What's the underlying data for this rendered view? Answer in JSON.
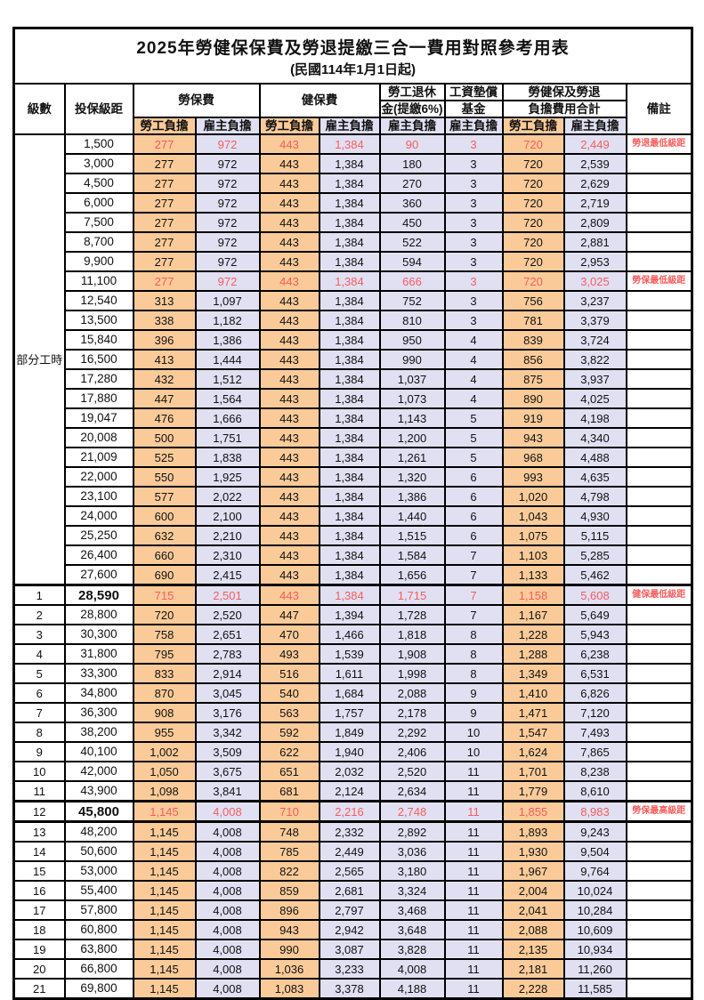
{
  "title": "2025年勞健保保費及勞退提繳三合一費用對照參考用表",
  "subtitle": "(民國114年1月1日起)",
  "header": {
    "level": "級數",
    "bracket": "投保級距",
    "labor_fee": "勞保費",
    "health_fee": "健保費",
    "pension_line1": "勞工退休",
    "pension_line2": "金(提繳6%)",
    "wage_fund_line1": "工資墊償",
    "wage_fund_line2": "基金",
    "total_line1": "勞健保及勞退",
    "total_line2": "負擔費用合計",
    "remark": "備註",
    "worker_share": "勞工負擔",
    "employer_share": "雇主負擔"
  },
  "part_time_label": "部分工時",
  "part_time_rows": 23,
  "colors": {
    "worker_bg": "#facb99",
    "employer_bg": "#e1e0f3",
    "highlight_red": "#f75d5d",
    "border": "#000000"
  },
  "rows": [
    {
      "level": "",
      "bracket": "1,500",
      "values": [
        "277",
        "972",
        "443",
        "1,384",
        "90",
        "3",
        "720",
        "2,449"
      ],
      "red": true,
      "remark": "勞退最低級距",
      "big": false,
      "thick_top": false,
      "thick_bottom": false
    },
    {
      "level": "",
      "bracket": "3,000",
      "values": [
        "277",
        "972",
        "443",
        "1,384",
        "180",
        "3",
        "720",
        "2,539"
      ],
      "red": false,
      "remark": "",
      "big": false,
      "thick_top": false,
      "thick_bottom": false
    },
    {
      "level": "",
      "bracket": "4,500",
      "values": [
        "277",
        "972",
        "443",
        "1,384",
        "270",
        "3",
        "720",
        "2,629"
      ],
      "red": false,
      "remark": "",
      "big": false,
      "thick_top": false,
      "thick_bottom": false
    },
    {
      "level": "",
      "bracket": "6,000",
      "values": [
        "277",
        "972",
        "443",
        "1,384",
        "360",
        "3",
        "720",
        "2,719"
      ],
      "red": false,
      "remark": "",
      "big": false,
      "thick_top": false,
      "thick_bottom": false
    },
    {
      "level": "",
      "bracket": "7,500",
      "values": [
        "277",
        "972",
        "443",
        "1,384",
        "450",
        "3",
        "720",
        "2,809"
      ],
      "red": false,
      "remark": "",
      "big": false,
      "thick_top": false,
      "thick_bottom": false
    },
    {
      "level": "",
      "bracket": "8,700",
      "values": [
        "277",
        "972",
        "443",
        "1,384",
        "522",
        "3",
        "720",
        "2,881"
      ],
      "red": false,
      "remark": "",
      "big": false,
      "thick_top": false,
      "thick_bottom": false
    },
    {
      "level": "",
      "bracket": "9,900",
      "values": [
        "277",
        "972",
        "443",
        "1,384",
        "594",
        "3",
        "720",
        "2,953"
      ],
      "red": false,
      "remark": "",
      "big": false,
      "thick_top": false,
      "thick_bottom": false
    },
    {
      "level": "",
      "bracket": "11,100",
      "values": [
        "277",
        "972",
        "443",
        "1,384",
        "666",
        "3",
        "720",
        "3,025"
      ],
      "red": true,
      "remark": "勞保最低級距",
      "big": false,
      "thick_top": false,
      "thick_bottom": false
    },
    {
      "level": "",
      "bracket": "12,540",
      "values": [
        "313",
        "1,097",
        "443",
        "1,384",
        "752",
        "3",
        "756",
        "3,237"
      ],
      "red": false,
      "remark": "",
      "big": false,
      "thick_top": false,
      "thick_bottom": false
    },
    {
      "level": "",
      "bracket": "13,500",
      "values": [
        "338",
        "1,182",
        "443",
        "1,384",
        "810",
        "3",
        "781",
        "3,379"
      ],
      "red": false,
      "remark": "",
      "big": false,
      "thick_top": false,
      "thick_bottom": false
    },
    {
      "level": "",
      "bracket": "15,840",
      "values": [
        "396",
        "1,386",
        "443",
        "1,384",
        "950",
        "4",
        "839",
        "3,724"
      ],
      "red": false,
      "remark": "",
      "big": false,
      "thick_top": false,
      "thick_bottom": false
    },
    {
      "level": "",
      "bracket": "16,500",
      "values": [
        "413",
        "1,444",
        "443",
        "1,384",
        "990",
        "4",
        "856",
        "3,822"
      ],
      "red": false,
      "remark": "",
      "big": false,
      "thick_top": false,
      "thick_bottom": false
    },
    {
      "level": "",
      "bracket": "17,280",
      "values": [
        "432",
        "1,512",
        "443",
        "1,384",
        "1,037",
        "4",
        "875",
        "3,937"
      ],
      "red": false,
      "remark": "",
      "big": false,
      "thick_top": false,
      "thick_bottom": false
    },
    {
      "level": "",
      "bracket": "17,880",
      "values": [
        "447",
        "1,564",
        "443",
        "1,384",
        "1,073",
        "4",
        "890",
        "4,025"
      ],
      "red": false,
      "remark": "",
      "big": false,
      "thick_top": false,
      "thick_bottom": false
    },
    {
      "level": "",
      "bracket": "19,047",
      "values": [
        "476",
        "1,666",
        "443",
        "1,384",
        "1,143",
        "5",
        "919",
        "4,198"
      ],
      "red": false,
      "remark": "",
      "big": false,
      "thick_top": false,
      "thick_bottom": false
    },
    {
      "level": "",
      "bracket": "20,008",
      "values": [
        "500",
        "1,751",
        "443",
        "1,384",
        "1,200",
        "5",
        "943",
        "4,340"
      ],
      "red": false,
      "remark": "",
      "big": false,
      "thick_top": false,
      "thick_bottom": false
    },
    {
      "level": "",
      "bracket": "21,009",
      "values": [
        "525",
        "1,838",
        "443",
        "1,384",
        "1,261",
        "5",
        "968",
        "4,488"
      ],
      "red": false,
      "remark": "",
      "big": false,
      "thick_top": false,
      "thick_bottom": false
    },
    {
      "level": "",
      "bracket": "22,000",
      "values": [
        "550",
        "1,925",
        "443",
        "1,384",
        "1,320",
        "6",
        "993",
        "4,635"
      ],
      "red": false,
      "remark": "",
      "big": false,
      "thick_top": false,
      "thick_bottom": false
    },
    {
      "level": "",
      "bracket": "23,100",
      "values": [
        "577",
        "2,022",
        "443",
        "1,384",
        "1,386",
        "6",
        "1,020",
        "4,798"
      ],
      "red": false,
      "remark": "",
      "big": false,
      "thick_top": false,
      "thick_bottom": false
    },
    {
      "level": "",
      "bracket": "24,000",
      "values": [
        "600",
        "2,100",
        "443",
        "1,384",
        "1,440",
        "6",
        "1,043",
        "4,930"
      ],
      "red": false,
      "remark": "",
      "big": false,
      "thick_top": false,
      "thick_bottom": false
    },
    {
      "level": "",
      "bracket": "25,250",
      "values": [
        "632",
        "2,210",
        "443",
        "1,384",
        "1,515",
        "6",
        "1,075",
        "5,115"
      ],
      "red": false,
      "remark": "",
      "big": false,
      "thick_top": false,
      "thick_bottom": false
    },
    {
      "level": "",
      "bracket": "26,400",
      "values": [
        "660",
        "2,310",
        "443",
        "1,384",
        "1,584",
        "7",
        "1,103",
        "5,285"
      ],
      "red": false,
      "remark": "",
      "big": false,
      "thick_top": false,
      "thick_bottom": false
    },
    {
      "level": "",
      "bracket": "27,600",
      "values": [
        "690",
        "2,415",
        "443",
        "1,384",
        "1,656",
        "7",
        "1,133",
        "5,462"
      ],
      "red": false,
      "remark": "",
      "big": false,
      "thick_top": false,
      "thick_bottom": false
    },
    {
      "level": "1",
      "bracket": "28,590",
      "values": [
        "715",
        "2,501",
        "443",
        "1,384",
        "1,715",
        "7",
        "1,158",
        "5,608"
      ],
      "red": true,
      "remark": "健保最低級距",
      "big": true,
      "thick_top": true,
      "thick_bottom": false
    },
    {
      "level": "2",
      "bracket": "28,800",
      "values": [
        "720",
        "2,520",
        "447",
        "1,394",
        "1,728",
        "7",
        "1,167",
        "5,649"
      ],
      "red": false,
      "remark": "",
      "big": false,
      "thick_top": false,
      "thick_bottom": false
    },
    {
      "level": "3",
      "bracket": "30,300",
      "values": [
        "758",
        "2,651",
        "470",
        "1,466",
        "1,818",
        "8",
        "1,228",
        "5,943"
      ],
      "red": false,
      "remark": "",
      "big": false,
      "thick_top": false,
      "thick_bottom": false
    },
    {
      "level": "4",
      "bracket": "31,800",
      "values": [
        "795",
        "2,783",
        "493",
        "1,539",
        "1,908",
        "8",
        "1,288",
        "6,238"
      ],
      "red": false,
      "remark": "",
      "big": false,
      "thick_top": false,
      "thick_bottom": false
    },
    {
      "level": "5",
      "bracket": "33,300",
      "values": [
        "833",
        "2,914",
        "516",
        "1,611",
        "1,998",
        "8",
        "1,349",
        "6,531"
      ],
      "red": false,
      "remark": "",
      "big": false,
      "thick_top": false,
      "thick_bottom": false
    },
    {
      "level": "6",
      "bracket": "34,800",
      "values": [
        "870",
        "3,045",
        "540",
        "1,684",
        "2,088",
        "9",
        "1,410",
        "6,826"
      ],
      "red": false,
      "remark": "",
      "big": false,
      "thick_top": false,
      "thick_bottom": false
    },
    {
      "level": "7",
      "bracket": "36,300",
      "values": [
        "908",
        "3,176",
        "563",
        "1,757",
        "2,178",
        "9",
        "1,471",
        "7,120"
      ],
      "red": false,
      "remark": "",
      "big": false,
      "thick_top": false,
      "thick_bottom": false
    },
    {
      "level": "8",
      "bracket": "38,200",
      "values": [
        "955",
        "3,342",
        "592",
        "1,849",
        "2,292",
        "10",
        "1,547",
        "7,493"
      ],
      "red": false,
      "remark": "",
      "big": false,
      "thick_top": false,
      "thick_bottom": false
    },
    {
      "level": "9",
      "bracket": "40,100",
      "values": [
        "1,002",
        "3,509",
        "622",
        "1,940",
        "2,406",
        "10",
        "1,624",
        "7,865"
      ],
      "red": false,
      "remark": "",
      "big": false,
      "thick_top": false,
      "thick_bottom": false
    },
    {
      "level": "10",
      "bracket": "42,000",
      "values": [
        "1,050",
        "3,675",
        "651",
        "2,032",
        "2,520",
        "11",
        "1,701",
        "8,238"
      ],
      "red": false,
      "remark": "",
      "big": false,
      "thick_top": false,
      "thick_bottom": false
    },
    {
      "level": "11",
      "bracket": "43,900",
      "values": [
        "1,098",
        "3,841",
        "681",
        "2,124",
        "2,634",
        "11",
        "1,779",
        "8,610"
      ],
      "red": false,
      "remark": "",
      "big": false,
      "thick_top": false,
      "thick_bottom": false
    },
    {
      "level": "12",
      "bracket": "45,800",
      "values": [
        "1,145",
        "4,008",
        "710",
        "2,216",
        "2,748",
        "11",
        "1,855",
        "8,983"
      ],
      "red": true,
      "remark": "勞保最高級距",
      "big": true,
      "thick_top": true,
      "thick_bottom": true
    },
    {
      "level": "13",
      "bracket": "48,200",
      "values": [
        "1,145",
        "4,008",
        "748",
        "2,332",
        "2,892",
        "11",
        "1,893",
        "9,243"
      ],
      "red": false,
      "remark": "",
      "big": false,
      "thick_top": false,
      "thick_bottom": false
    },
    {
      "level": "14",
      "bracket": "50,600",
      "values": [
        "1,145",
        "4,008",
        "785",
        "2,449",
        "3,036",
        "11",
        "1,930",
        "9,504"
      ],
      "red": false,
      "remark": "",
      "big": false,
      "thick_top": false,
      "thick_bottom": false
    },
    {
      "level": "15",
      "bracket": "53,000",
      "values": [
        "1,145",
        "4,008",
        "822",
        "2,565",
        "3,180",
        "11",
        "1,967",
        "9,764"
      ],
      "red": false,
      "remark": "",
      "big": false,
      "thick_top": false,
      "thick_bottom": false
    },
    {
      "level": "16",
      "bracket": "55,400",
      "values": [
        "1,145",
        "4,008",
        "859",
        "2,681",
        "3,324",
        "11",
        "2,004",
        "10,024"
      ],
      "red": false,
      "remark": "",
      "big": false,
      "thick_top": false,
      "thick_bottom": false
    },
    {
      "level": "17",
      "bracket": "57,800",
      "values": [
        "1,145",
        "4,008",
        "896",
        "2,797",
        "3,468",
        "11",
        "2,041",
        "10,284"
      ],
      "red": false,
      "remark": "",
      "big": false,
      "thick_top": false,
      "thick_bottom": false
    },
    {
      "level": "18",
      "bracket": "60,800",
      "values": [
        "1,145",
        "4,008",
        "943",
        "2,942",
        "3,648",
        "11",
        "2,088",
        "10,609"
      ],
      "red": false,
      "remark": "",
      "big": false,
      "thick_top": false,
      "thick_bottom": false
    },
    {
      "level": "19",
      "bracket": "63,800",
      "values": [
        "1,145",
        "4,008",
        "990",
        "3,087",
        "3,828",
        "11",
        "2,135",
        "10,934"
      ],
      "red": false,
      "remark": "",
      "big": false,
      "thick_top": false,
      "thick_bottom": false
    },
    {
      "level": "20",
      "bracket": "66,800",
      "values": [
        "1,145",
        "4,008",
        "1,036",
        "3,233",
        "4,008",
        "11",
        "2,181",
        "11,260"
      ],
      "red": false,
      "remark": "",
      "big": false,
      "thick_top": false,
      "thick_bottom": false
    },
    {
      "level": "21",
      "bracket": "69,800",
      "values": [
        "1,145",
        "4,008",
        "1,083",
        "3,378",
        "4,188",
        "11",
        "2,228",
        "11,585"
      ],
      "red": false,
      "remark": "",
      "big": false,
      "thick_top": false,
      "thick_bottom": false
    }
  ]
}
